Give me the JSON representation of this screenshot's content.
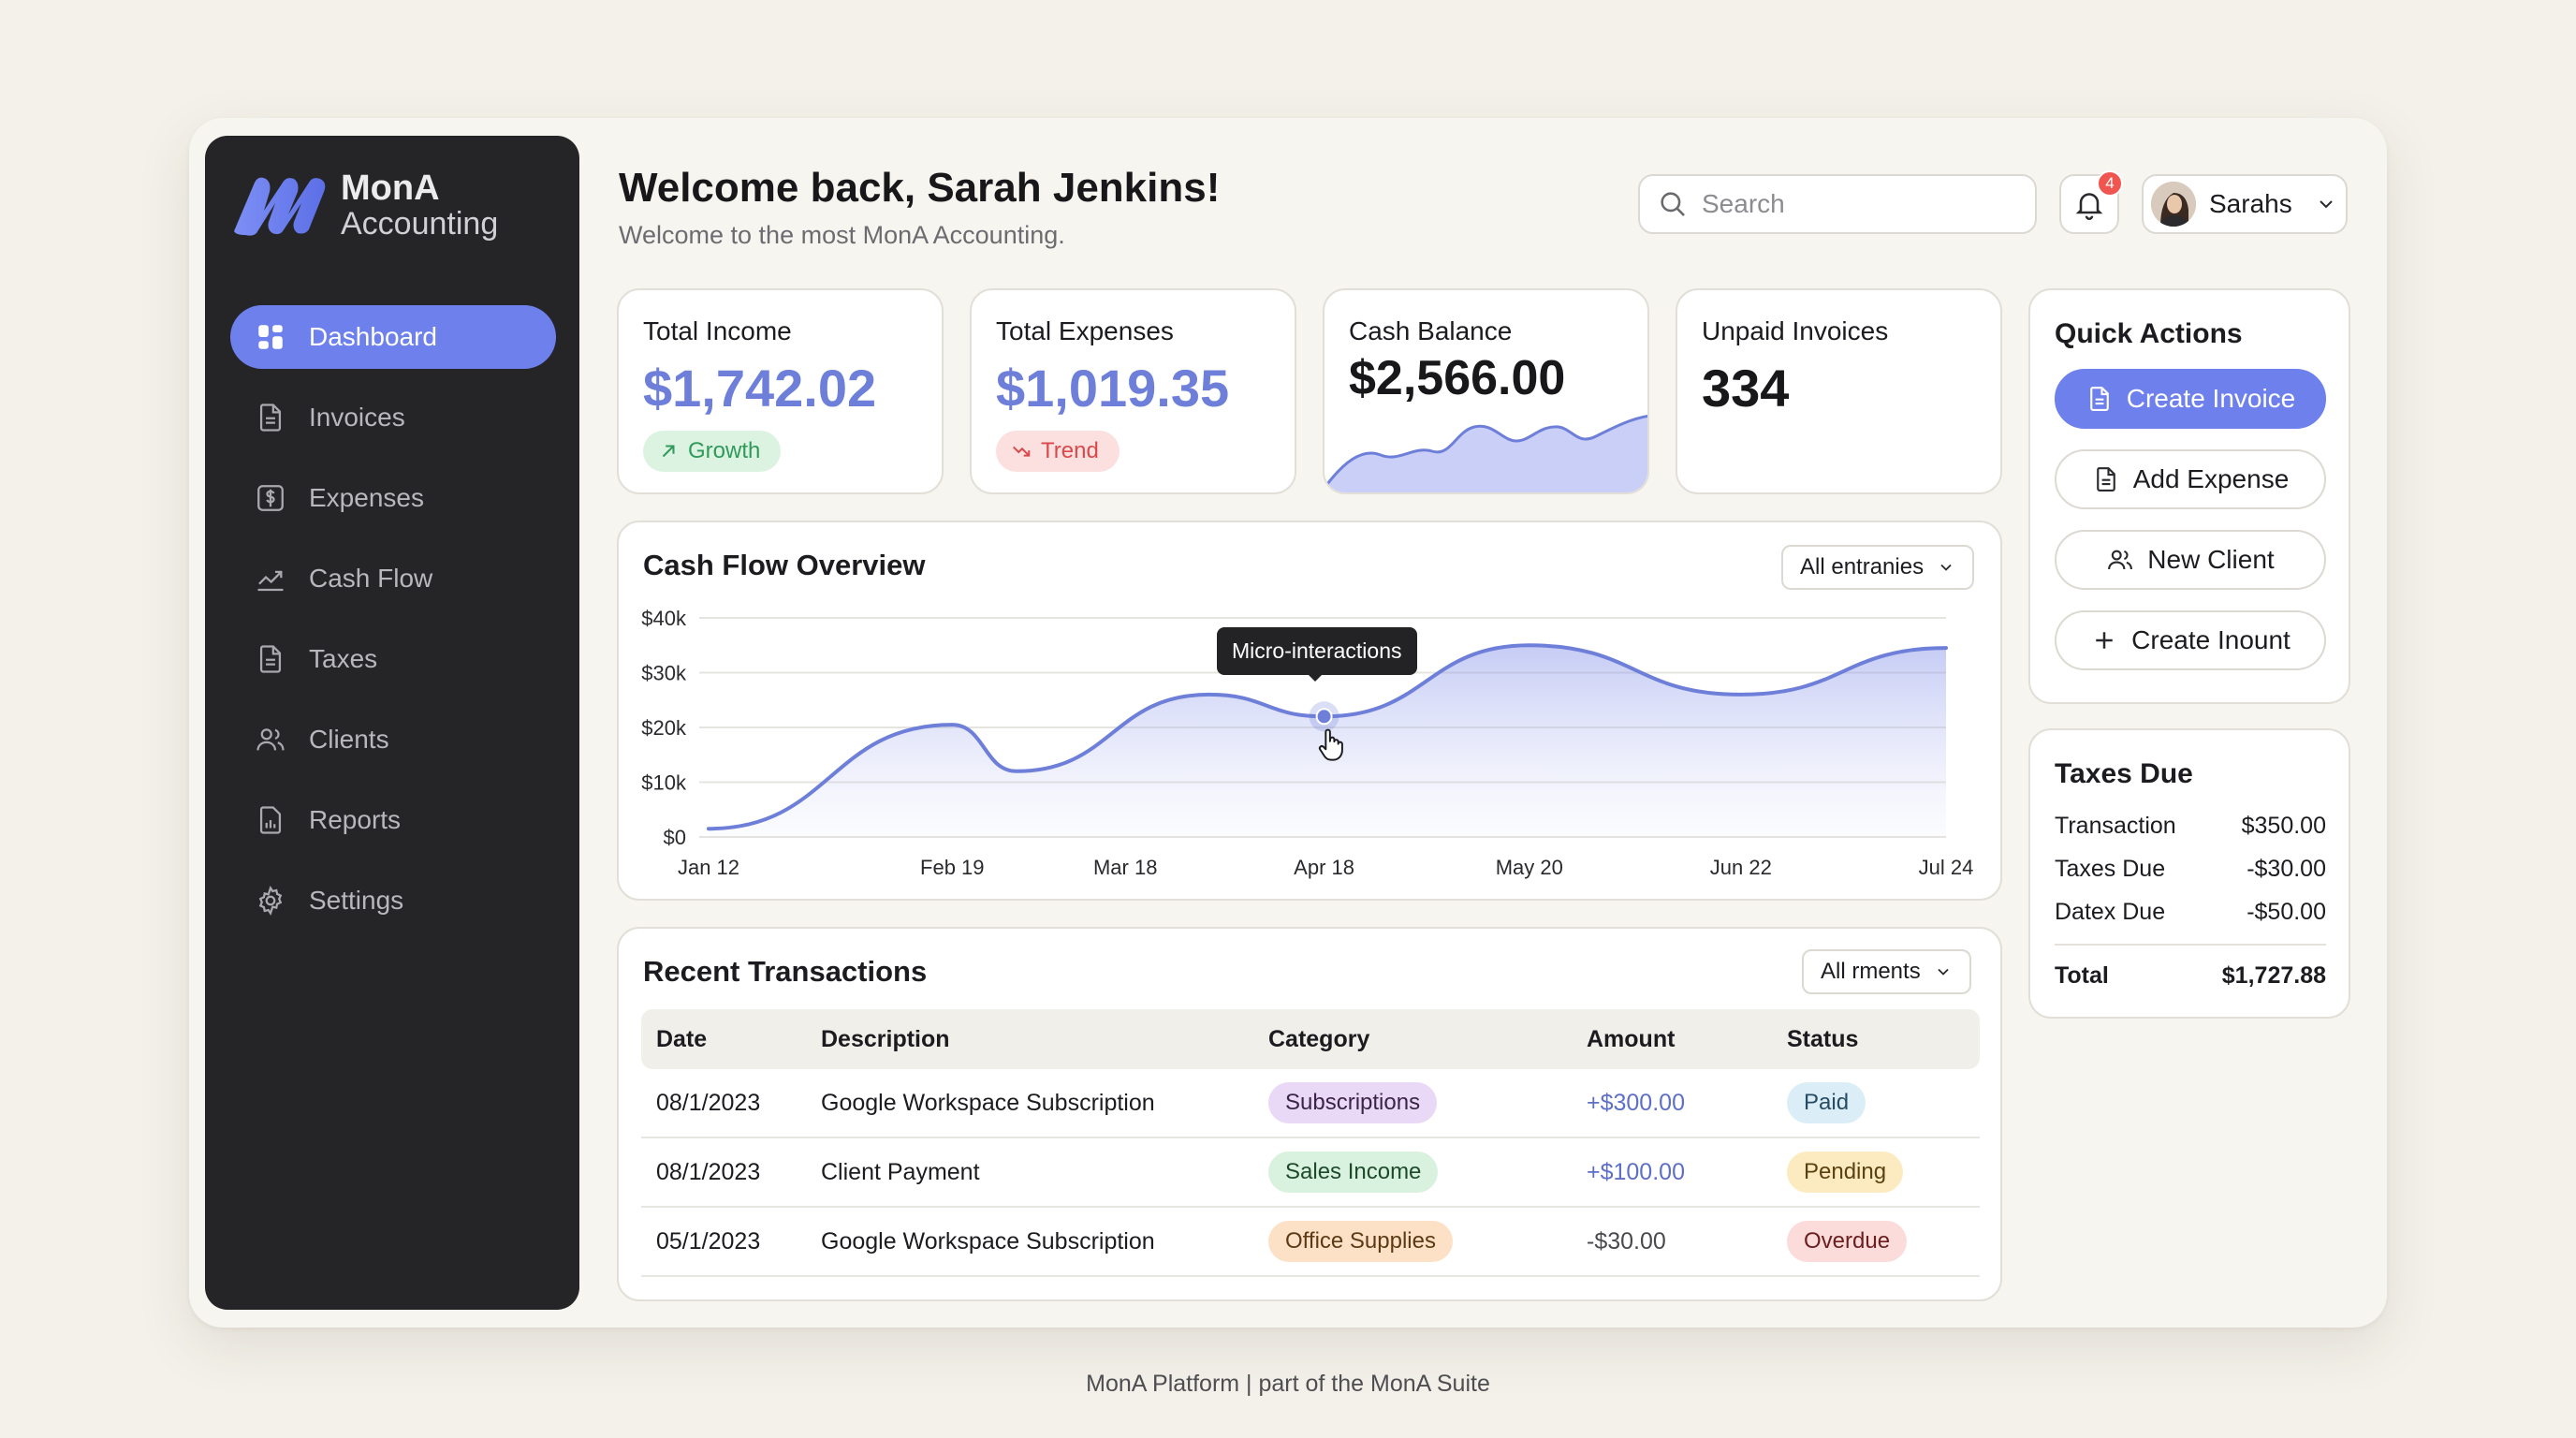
{
  "app": {
    "logo_line1": "MonA",
    "logo_line2": "Accounting"
  },
  "nav": [
    {
      "label": "Dashboard",
      "icon": "grid-icon",
      "active": true
    },
    {
      "label": "Invoices",
      "icon": "document-icon"
    },
    {
      "label": "Expenses",
      "icon": "dollar-icon"
    },
    {
      "label": "Cash Flow",
      "icon": "trend-icon"
    },
    {
      "label": "Taxes",
      "icon": "document-icon"
    },
    {
      "label": "Clients",
      "icon": "users-icon"
    },
    {
      "label": "Reports",
      "icon": "report-icon"
    },
    {
      "label": "Settings",
      "icon": "gear-icon"
    }
  ],
  "header": {
    "title": "Welcome back, Sarah Jenkins!",
    "subtitle": "Welcome to the most MonA Accounting.",
    "search_placeholder": "Search",
    "notification_count": "4",
    "user_name": "Sarahs"
  },
  "stats": {
    "income": {
      "label": "Total Income",
      "value": "$1,742.02",
      "pill": "Growth"
    },
    "expenses": {
      "label": "Total Expenses",
      "value": "$1,019.35",
      "pill": "Trend"
    },
    "balance": {
      "label": "Cash Balance",
      "value": "$2,566.00"
    },
    "unpaid": {
      "label": "Unpaid Invoices",
      "value": "334"
    }
  },
  "cashflow": {
    "title": "Cash Flow Overview",
    "filter": "All entranies",
    "tooltip": "Micro-interactions"
  },
  "chart_data": {
    "type": "area",
    "title": "Cash Flow Overview",
    "x_ticks": [
      "Jan 12",
      "Feb 19",
      "Mar 18",
      "Apr 18",
      "May 20",
      "Jun 22",
      "Jul 24"
    ],
    "y_ticks": [
      "$0",
      "$10k",
      "$20k",
      "$30k",
      "$40k"
    ],
    "ylim": [
      0,
      40000
    ],
    "series": [
      {
        "points": [
          [
            "Jan 12",
            1500
          ],
          [
            "Feb 19",
            20500
          ],
          [
            "Mar 1",
            12000
          ],
          [
            "Mar 31",
            26000
          ],
          [
            "Apr 18",
            22000
          ],
          [
            "May 20",
            35000
          ],
          [
            "Jun 22",
            26000
          ],
          [
            "Jul 24",
            34500
          ]
        ]
      }
    ],
    "highlight": {
      "x": "Apr 18",
      "y": 22000
    },
    "grid": true,
    "color": "#6e7fd9"
  },
  "transactions": {
    "title": "Recent Transactions",
    "filter": "All rments",
    "columns": [
      "Date",
      "Description",
      "Category",
      "Amount",
      "Status"
    ],
    "rows": [
      {
        "date": "08/1/2023",
        "description": "Google Workspace Subscription",
        "category": "Subscriptions",
        "amount": "+$300.00",
        "status": "Paid"
      },
      {
        "date": "08/1/2023",
        "description": "Client Payment",
        "category": "Sales Income",
        "amount": "+$100.00",
        "status": "Pending"
      },
      {
        "date": "05/1/2023",
        "description": "Google Workspace Subscription",
        "category": "Office Supplies",
        "amount": "-$30.00",
        "status": "Overdue"
      }
    ]
  },
  "quick_actions": {
    "title": "Quick Actions",
    "buttons": [
      "Create Invoice",
      "Add Expense",
      "New Client",
      "Create Inount"
    ]
  },
  "taxes": {
    "title": "Taxes Due",
    "rows": [
      {
        "label": "Transaction",
        "value": "$350.00"
      },
      {
        "label": "Taxes Due",
        "value": "-$30.00"
      },
      {
        "label": "Datex Due",
        "value": "-$50.00"
      }
    ],
    "total_label": "Total",
    "total_value": "$1,727.88"
  },
  "colors": {
    "accent": "#6e80ec",
    "sidebar": "#252528",
    "growth": "#2f9a5a",
    "trend": "#d9494b"
  },
  "footer": "MonA Platform | part of the MonA Suite"
}
